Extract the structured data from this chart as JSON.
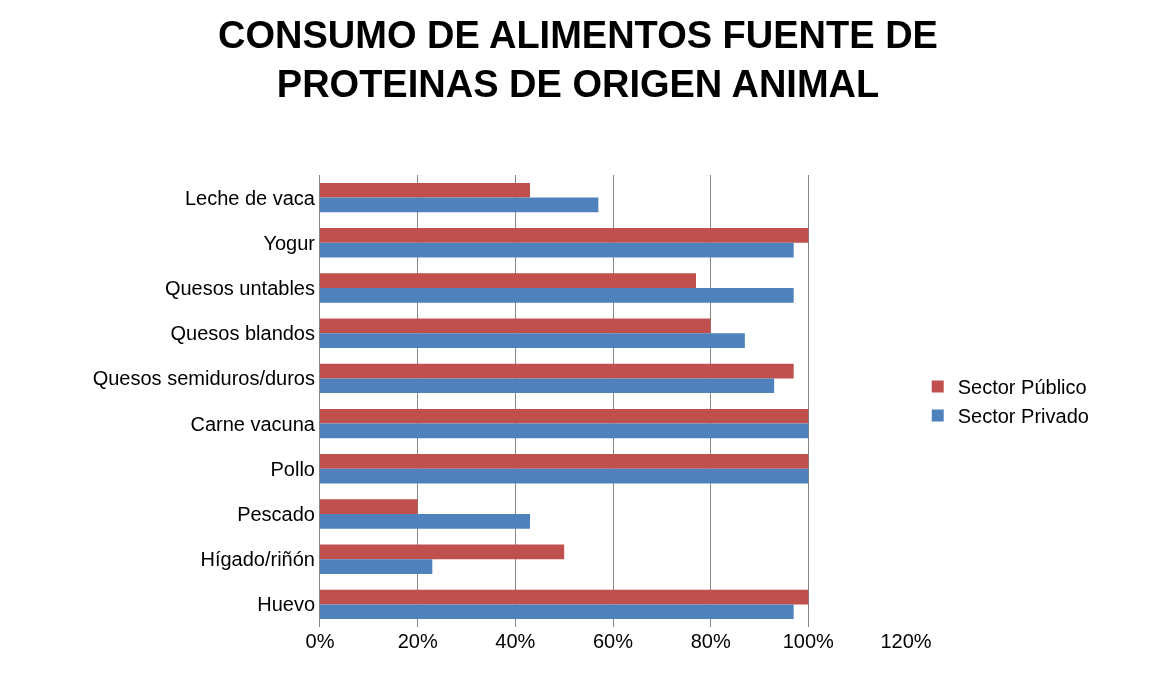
{
  "chart_data": {
    "type": "bar",
    "orientation": "horizontal",
    "title": "CONSUMO DE ALIMENTOS FUENTE DE PROTEINAS DE ORIGEN ANIMAL",
    "categories": [
      "Leche de vaca",
      "Yogur",
      "Quesos untables",
      "Quesos blandos",
      "Quesos semiduros/duros",
      "Carne vacuna",
      "Pollo",
      "Pescado",
      "Hígado/riñón",
      "Huevo"
    ],
    "series": [
      {
        "name": "Sector Público",
        "color": "#c0504d",
        "values": [
          43,
          100,
          77,
          80,
          97,
          100,
          100,
          20,
          50,
          100
        ]
      },
      {
        "name": "Sector Privado",
        "color": "#4f81bd",
        "values": [
          57,
          97,
          97,
          87,
          93,
          100,
          100,
          43,
          23,
          97
        ]
      }
    ],
    "xlim": [
      0,
      120
    ],
    "xticks": [
      {
        "value": 0,
        "label": "0%"
      },
      {
        "value": 20,
        "label": "20%"
      },
      {
        "value": 40,
        "label": "40%"
      },
      {
        "value": 60,
        "label": "60%"
      },
      {
        "value": 80,
        "label": "80%"
      },
      {
        "value": 100,
        "label": "100%"
      },
      {
        "value": 120,
        "label": "120%"
      }
    ],
    "grid": "x",
    "legend": "right"
  }
}
